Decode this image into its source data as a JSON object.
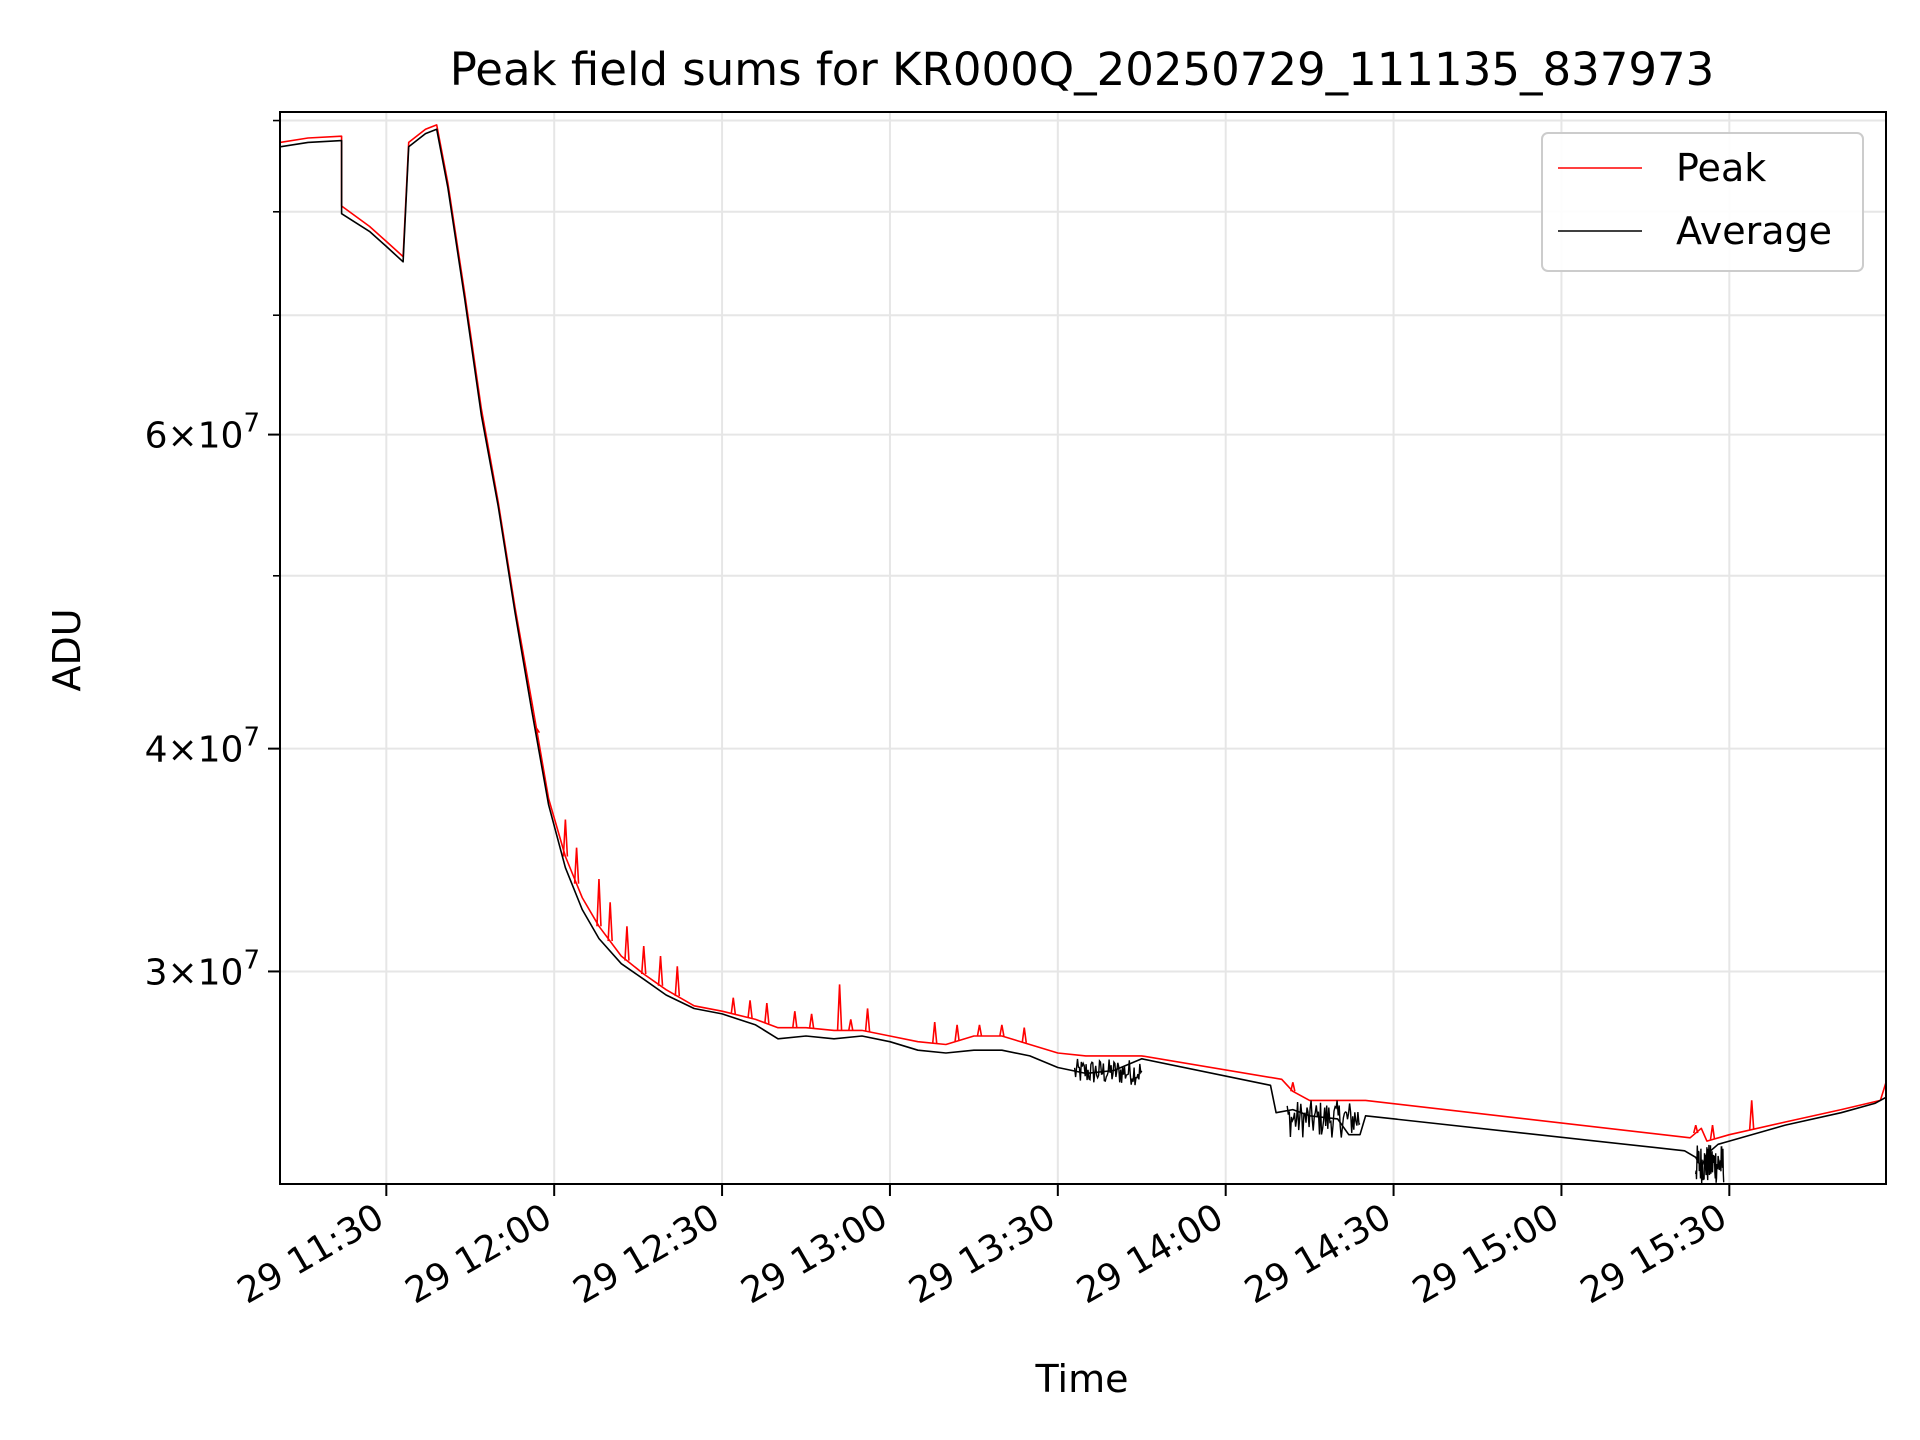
{
  "chart_data": {
    "type": "line",
    "title": "Peak field sums for KR000Q_20250729_111135_837973",
    "xlabel": "Time",
    "ylabel": "ADU",
    "y_scale": "log",
    "xlim": [
      "2025-07-29 11:11",
      "2025-07-29 15:58"
    ],
    "ylim": [
      22800000,
      91000000
    ],
    "grid": true,
    "legend_position": "top-right",
    "x_ticks": [
      {
        "t": "2025-07-29 11:30",
        "label": "29 11:30"
      },
      {
        "t": "2025-07-29 12:00",
        "label": "29 12:00"
      },
      {
        "t": "2025-07-29 12:30",
        "label": "29 12:30"
      },
      {
        "t": "2025-07-29 13:00",
        "label": "29 13:00"
      },
      {
        "t": "2025-07-29 13:30",
        "label": "29 13:30"
      },
      {
        "t": "2025-07-29 14:00",
        "label": "29 14:00"
      },
      {
        "t": "2025-07-29 14:30",
        "label": "29 14:30"
      },
      {
        "t": "2025-07-29 15:00",
        "label": "29 15:00"
      },
      {
        "t": "2025-07-29 15:30",
        "label": "29 15:30"
      }
    ],
    "y_major_ticks": [
      {
        "value": 30000000,
        "mantissa": "3",
        "base": "10",
        "exp": "7"
      },
      {
        "value": 40000000,
        "mantissa": "4",
        "base": "10",
        "exp": "7"
      },
      {
        "value": 60000000,
        "mantissa": "6",
        "base": "10",
        "exp": "7"
      }
    ],
    "y_minor_ticks": [
      50000000,
      70000000,
      80000000,
      90000000
    ],
    "series": [
      {
        "name": "Peak",
        "color": "#ff0000",
        "points": [
          [
            "2025-07-29 11:11",
            87500000
          ],
          [
            "2025-07-29 11:16",
            88000000
          ],
          [
            "2025-07-29 11:22",
            88200000
          ],
          [
            "2025-07-29 11:22",
            80600000
          ],
          [
            "2025-07-29 11:27",
            78500000
          ],
          [
            "2025-07-29 11:30",
            77000000
          ],
          [
            "2025-07-29 11:33",
            75500000
          ],
          [
            "2025-07-29 11:34",
            87500000
          ],
          [
            "2025-07-29 11:37",
            89000000
          ],
          [
            "2025-07-29 11:39",
            89500000
          ],
          [
            "2025-07-29 11:41",
            83000000
          ],
          [
            "2025-07-29 11:44",
            72000000
          ],
          [
            "2025-07-29 11:47",
            62000000
          ],
          [
            "2025-07-29 11:50",
            55000000
          ],
          [
            "2025-07-29 11:53",
            48000000
          ],
          [
            "2025-07-29 11:56",
            42500000
          ],
          [
            "2025-07-29 11:59",
            37500000
          ],
          [
            "2025-07-29 12:02",
            34800000
          ],
          [
            "2025-07-29 12:05",
            33000000
          ],
          [
            "2025-07-29 12:08",
            31800000
          ],
          [
            "2025-07-29 12:12",
            30600000
          ],
          [
            "2025-07-29 12:16",
            29900000
          ],
          [
            "2025-07-29 12:20",
            29300000
          ],
          [
            "2025-07-29 12:25",
            28700000
          ],
          [
            "2025-07-29 12:30",
            28500000
          ],
          [
            "2025-07-29 12:36",
            28200000
          ],
          [
            "2025-07-29 12:40",
            27900000
          ],
          [
            "2025-07-29 12:45",
            27900000
          ],
          [
            "2025-07-29 12:50",
            27800000
          ],
          [
            "2025-07-29 12:55",
            27800000
          ],
          [
            "2025-07-29 13:00",
            27600000
          ],
          [
            "2025-07-29 13:05",
            27400000
          ],
          [
            "2025-07-29 13:10",
            27300000
          ],
          [
            "2025-07-29 13:15",
            27600000
          ],
          [
            "2025-07-29 13:20",
            27600000
          ],
          [
            "2025-07-29 13:25",
            27300000
          ],
          [
            "2025-07-29 13:30",
            27000000
          ],
          [
            "2025-07-29 13:35",
            26900000
          ],
          [
            "2025-07-29 13:40",
            26900000
          ],
          [
            "2025-07-29 13:45",
            26900000
          ],
          [
            "2025-07-29 14:10",
            26100000
          ],
          [
            "2025-07-29 14:12",
            25700000
          ],
          [
            "2025-07-29 14:15",
            25400000
          ],
          [
            "2025-07-29 14:20",
            25400000
          ],
          [
            "2025-07-29 14:25",
            25400000
          ],
          [
            "2025-07-29 15:23",
            24200000
          ],
          [
            "2025-07-29 15:25",
            24500000
          ],
          [
            "2025-07-29 15:26",
            24100000
          ],
          [
            "2025-07-29 15:30",
            24300000
          ],
          [
            "2025-07-29 15:40",
            24700000
          ],
          [
            "2025-07-29 15:50",
            25100000
          ],
          [
            "2025-07-29 15:57",
            25400000
          ],
          [
            "2025-07-29 15:58",
            26000000
          ]
        ],
        "spikes": [
          [
            "2025-07-29 11:57",
            41000000
          ],
          [
            "2025-07-29 12:02",
            36500000
          ],
          [
            "2025-07-29 12:04",
            35200000
          ],
          [
            "2025-07-29 12:08",
            33800000
          ],
          [
            "2025-07-29 12:10",
            32800000
          ],
          [
            "2025-07-29 12:13",
            31800000
          ],
          [
            "2025-07-29 12:16",
            31000000
          ],
          [
            "2025-07-29 12:19",
            30600000
          ],
          [
            "2025-07-29 12:22",
            30200000
          ],
          [
            "2025-07-29 12:32",
            29000000
          ],
          [
            "2025-07-29 12:35",
            28900000
          ],
          [
            "2025-07-29 12:38",
            28800000
          ],
          [
            "2025-07-29 12:43",
            28500000
          ],
          [
            "2025-07-29 12:46",
            28400000
          ],
          [
            "2025-07-29 12:51",
            29500000
          ],
          [
            "2025-07-29 12:53",
            28200000
          ],
          [
            "2025-07-29 12:56",
            28600000
          ],
          [
            "2025-07-29 13:08",
            28100000
          ],
          [
            "2025-07-29 13:12",
            28000000
          ],
          [
            "2025-07-29 13:16",
            28000000
          ],
          [
            "2025-07-29 13:20",
            28000000
          ],
          [
            "2025-07-29 13:24",
            27900000
          ],
          [
            "2025-07-29 14:12",
            26000000
          ],
          [
            "2025-07-29 15:24",
            24600000
          ],
          [
            "2025-07-29 15:27",
            24600000
          ],
          [
            "2025-07-29 15:34",
            25400000
          ]
        ]
      },
      {
        "name": "Average",
        "color": "#000000",
        "points": [
          [
            "2025-07-29 11:11",
            87000000
          ],
          [
            "2025-07-29 11:16",
            87500000
          ],
          [
            "2025-07-29 11:22",
            87700000
          ],
          [
            "2025-07-29 11:22",
            79800000
          ],
          [
            "2025-07-29 11:27",
            78000000
          ],
          [
            "2025-07-29 11:30",
            76500000
          ],
          [
            "2025-07-29 11:33",
            75000000
          ],
          [
            "2025-07-29 11:34",
            87000000
          ],
          [
            "2025-07-29 11:37",
            88500000
          ],
          [
            "2025-07-29 11:39",
            89000000
          ],
          [
            "2025-07-29 11:41",
            82500000
          ],
          [
            "2025-07-29 11:44",
            71500000
          ],
          [
            "2025-07-29 11:47",
            61500000
          ],
          [
            "2025-07-29 11:50",
            54700000
          ],
          [
            "2025-07-29 11:53",
            47700000
          ],
          [
            "2025-07-29 11:56",
            42000000
          ],
          [
            "2025-07-29 11:59",
            37200000
          ],
          [
            "2025-07-29 12:02",
            34300000
          ],
          [
            "2025-07-29 12:05",
            32500000
          ],
          [
            "2025-07-29 12:08",
            31300000
          ],
          [
            "2025-07-29 12:12",
            30300000
          ],
          [
            "2025-07-29 12:16",
            29700000
          ],
          [
            "2025-07-29 12:20",
            29100000
          ],
          [
            "2025-07-29 12:25",
            28600000
          ],
          [
            "2025-07-29 12:30",
            28400000
          ],
          [
            "2025-07-29 12:36",
            28000000
          ],
          [
            "2025-07-29 12:40",
            27500000
          ],
          [
            "2025-07-29 12:45",
            27600000
          ],
          [
            "2025-07-29 12:50",
            27500000
          ],
          [
            "2025-07-29 12:55",
            27600000
          ],
          [
            "2025-07-29 13:00",
            27400000
          ],
          [
            "2025-07-29 13:05",
            27100000
          ],
          [
            "2025-07-29 13:10",
            27000000
          ],
          [
            "2025-07-29 13:15",
            27100000
          ],
          [
            "2025-07-29 13:20",
            27100000
          ],
          [
            "2025-07-29 13:25",
            26900000
          ],
          [
            "2025-07-29 13:30",
            26500000
          ],
          [
            "2025-07-29 13:35",
            26300000
          ],
          [
            "2025-07-29 13:40",
            26400000
          ],
          [
            "2025-07-29 13:45",
            26800000
          ],
          [
            "2025-07-29 14:08",
            25900000
          ],
          [
            "2025-07-29 14:09",
            25000000
          ],
          [
            "2025-07-29 14:12",
            25100000
          ],
          [
            "2025-07-29 14:15",
            24900000
          ],
          [
            "2025-07-29 14:20",
            24800000
          ],
          [
            "2025-07-29 14:22",
            24300000
          ],
          [
            "2025-07-29 14:24",
            24300000
          ],
          [
            "2025-07-29 14:25",
            24900000
          ],
          [
            "2025-07-29 15:22",
            23800000
          ],
          [
            "2025-07-29 15:24",
            23600000
          ],
          [
            "2025-07-29 15:25",
            23300000
          ],
          [
            "2025-07-29 15:26",
            23700000
          ],
          [
            "2025-07-29 15:28",
            24000000
          ],
          [
            "2025-07-29 15:30",
            24100000
          ],
          [
            "2025-07-29 15:40",
            24600000
          ],
          [
            "2025-07-29 15:50",
            25000000
          ],
          [
            "2025-07-29 15:56",
            25300000
          ],
          [
            "2025-07-29 15:58",
            25500000
          ]
        ],
        "noise_windows": [
          [
            "2025-07-29 13:33",
            "2025-07-29 13:45",
            25900000,
            26800000
          ],
          [
            "2025-07-29 14:11",
            "2025-07-29 14:24",
            24200000,
            25400000
          ],
          [
            "2025-07-29 15:24",
            "2025-07-29 15:29",
            22800000,
            24000000
          ]
        ]
      }
    ]
  }
}
